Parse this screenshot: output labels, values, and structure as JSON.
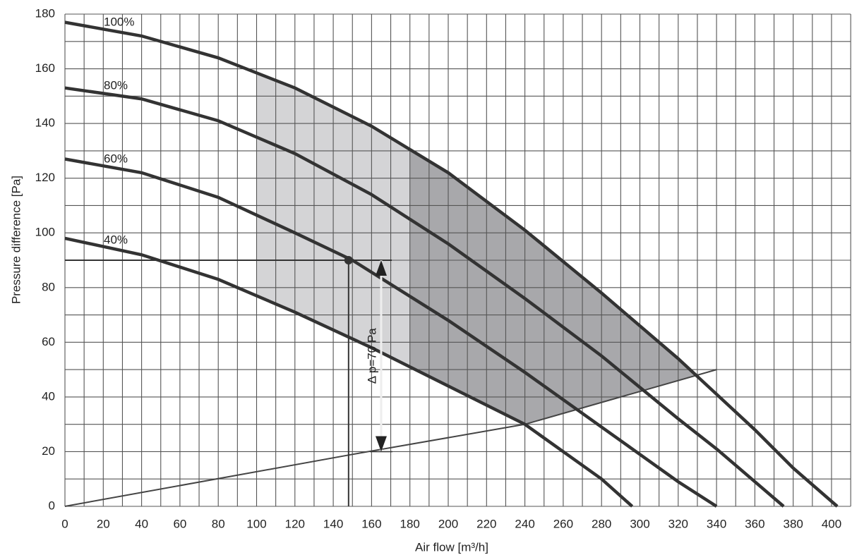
{
  "chart_data": {
    "type": "line",
    "xlabel": "Air flow [m³/h]",
    "ylabel": "Pressure difference [Pa]",
    "xlim": [
      0,
      410
    ],
    "ylim": [
      0,
      180
    ],
    "xticks": [
      0,
      20,
      40,
      60,
      80,
      100,
      120,
      140,
      160,
      180,
      200,
      220,
      240,
      260,
      280,
      300,
      320,
      340,
      360,
      380,
      400
    ],
    "yticks": [
      0,
      20,
      40,
      60,
      80,
      100,
      120,
      140,
      160,
      180
    ],
    "grid": true,
    "series": [
      {
        "name": "100%",
        "color": "#333333",
        "x": [
          0,
          40,
          80,
          120,
          160,
          200,
          240,
          280,
          320,
          340,
          360,
          380,
          403
        ],
        "values": [
          177,
          172,
          164,
          153,
          139,
          122,
          101,
          78,
          54,
          41,
          28,
          14,
          0
        ]
      },
      {
        "name": "80%",
        "color": "#333333",
        "x": [
          0,
          40,
          80,
          120,
          160,
          200,
          240,
          280,
          320,
          340,
          360,
          375
        ],
        "values": [
          153,
          149,
          141,
          129,
          114,
          96,
          76,
          55,
          32,
          21,
          9,
          0
        ]
      },
      {
        "name": "60%",
        "color": "#333333",
        "x": [
          0,
          40,
          80,
          120,
          150,
          200,
          240,
          280,
          300,
          320,
          340
        ],
        "values": [
          127,
          122,
          113,
          100,
          90,
          68,
          49,
          29,
          19,
          9,
          0
        ]
      },
      {
        "name": "40%",
        "color": "#333333",
        "x": [
          0,
          40,
          80,
          120,
          160,
          200,
          240,
          260,
          280,
          296
        ],
        "values": [
          98,
          92,
          83,
          71,
          58,
          44,
          30,
          20,
          10,
          0
        ]
      }
    ],
    "system_curve": {
      "color": "#444444",
      "x": [
        0,
        150,
        240,
        340
      ],
      "values": [
        0,
        19,
        30,
        50
      ]
    },
    "regions": [
      {
        "x_from": 100,
        "x_to": 180,
        "color": "#d4d4d6"
      },
      {
        "x_from": 180,
        "x_to": 340,
        "color": "#a8a8ab"
      }
    ],
    "operating_point": {
      "x": 148,
      "y": 90
    },
    "pressure_arrow": {
      "x": 165,
      "y_from": 90,
      "y_to": 20,
      "label": "Δ p=70 Pa"
    }
  }
}
